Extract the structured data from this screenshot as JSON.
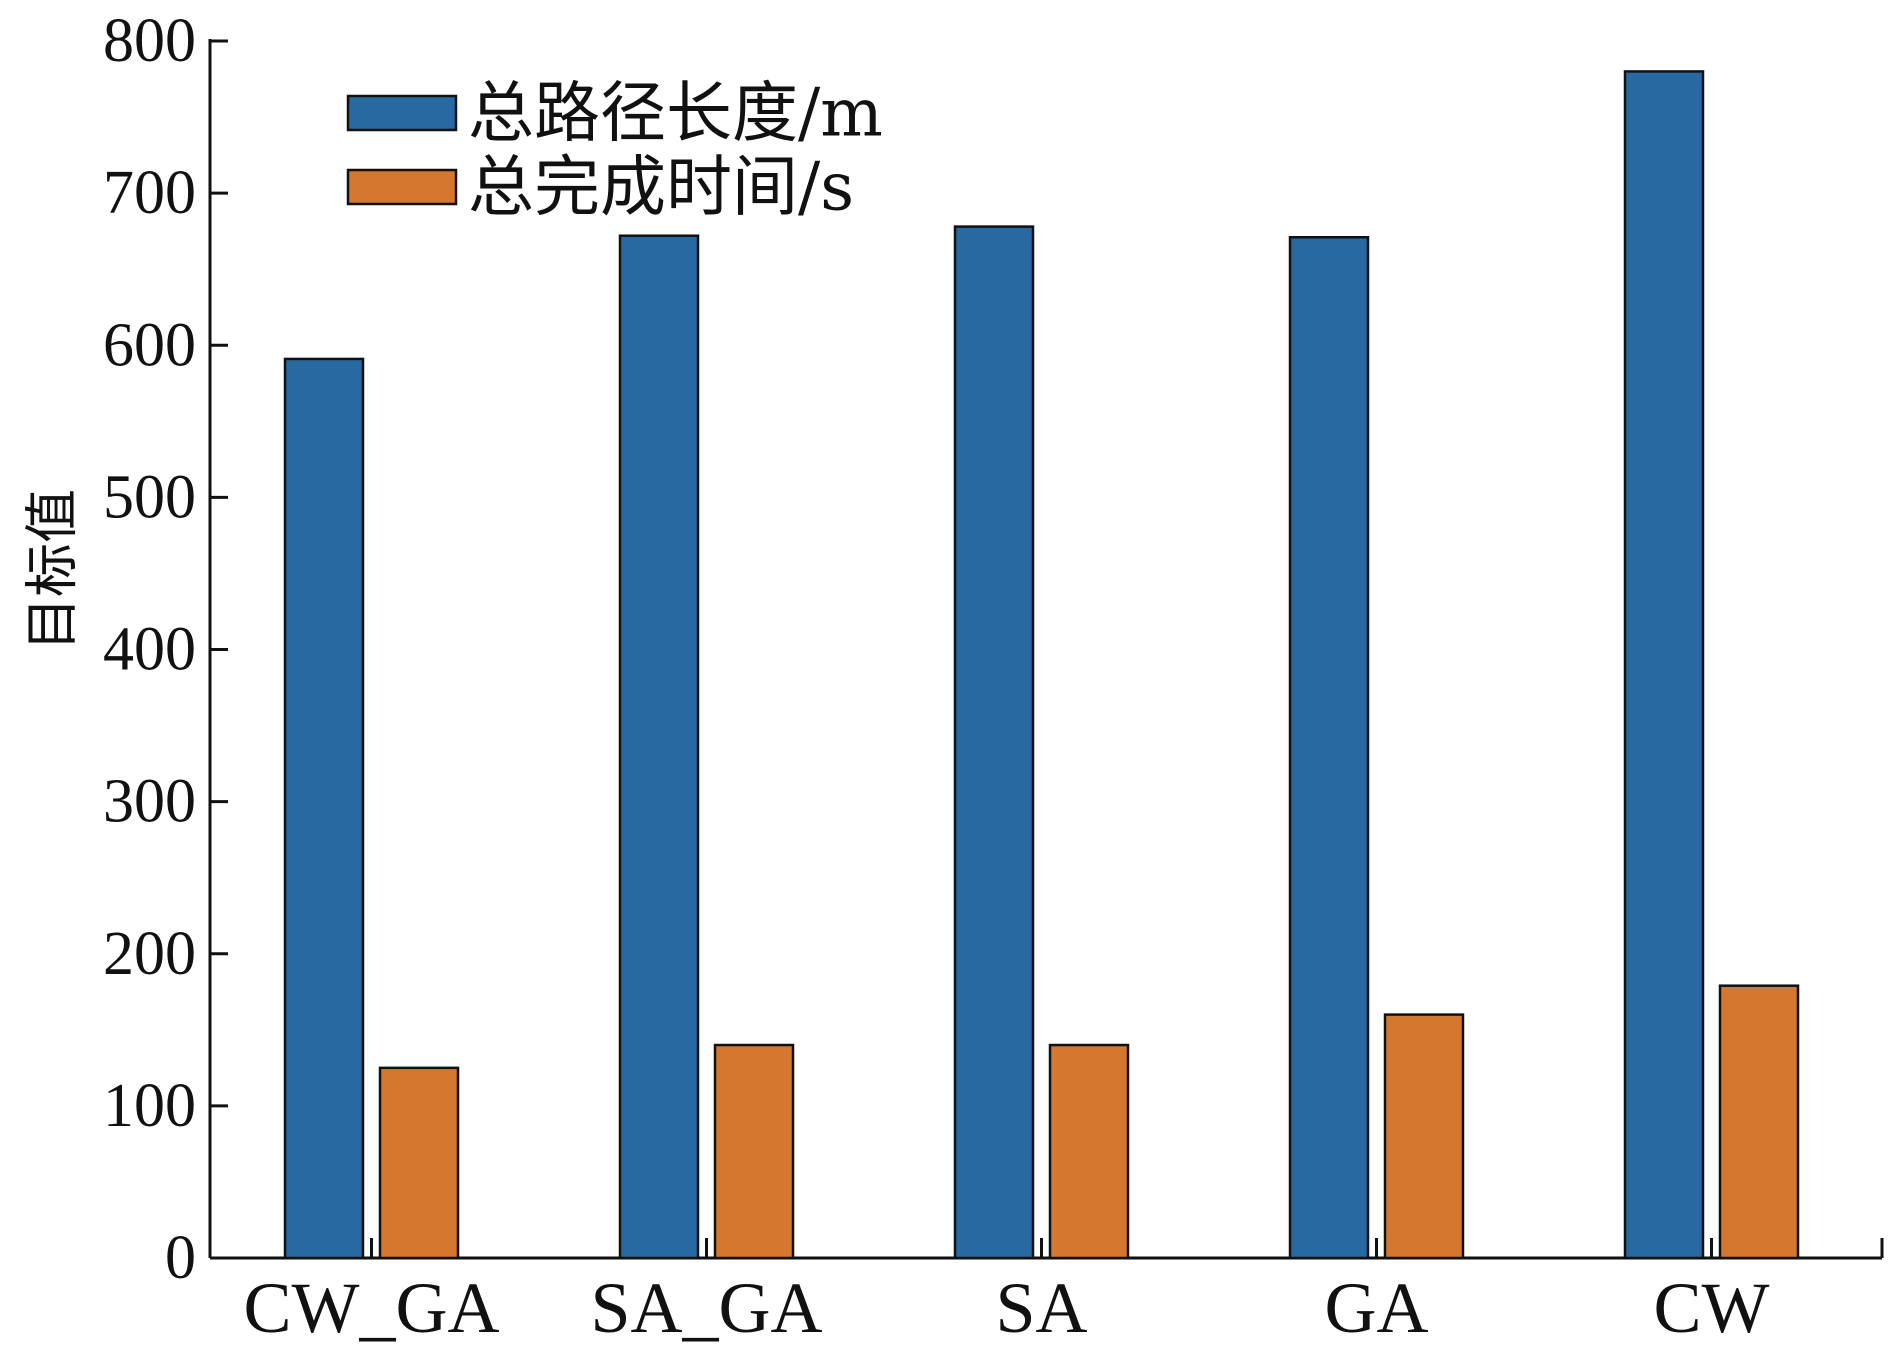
{
  "chart_data": {
    "type": "bar",
    "categories": [
      "CW_GA",
      "SA_GA",
      "SA",
      "GA",
      "CW"
    ],
    "series": [
      {
        "name": "总路径长度/m",
        "color": "#2769a0",
        "values": [
          591,
          672,
          678,
          671,
          780
        ]
      },
      {
        "name": "总完成时间/s",
        "color": "#d4772f",
        "values": [
          125,
          140,
          140,
          160,
          179
        ]
      }
    ],
    "ylabel": "目标值",
    "xlabel": "",
    "title": "",
    "ylim": [
      0,
      800
    ],
    "yticks": [
      0,
      100,
      200,
      300,
      400,
      500,
      600,
      700,
      800
    ],
    "grid": false,
    "legend_position": "top-left"
  }
}
